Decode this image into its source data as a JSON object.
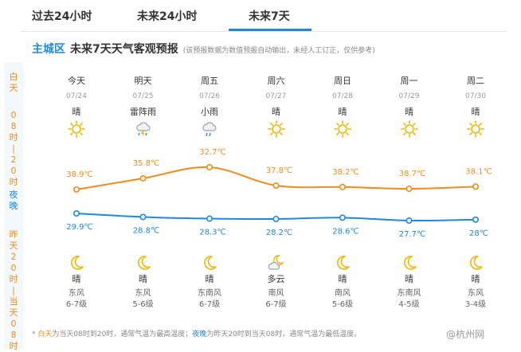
{
  "tabs": [
    {
      "label": "过去24小时",
      "active": false
    },
    {
      "label": "未来24小时",
      "active": false
    },
    {
      "label": "未来7天",
      "active": true
    }
  ],
  "header": {
    "district": "主城区",
    "title": "未来7天天气客观预报",
    "note": "(该预报数据为数值预报自动输出，未经人工订正，仅供参考)"
  },
  "side": {
    "day_label": "白天",
    "day_range": "08时|20时",
    "night_label": "夜晚",
    "night_range": "昨天20时|当天08时"
  },
  "days": [
    {
      "name": "今天",
      "date": "07/24",
      "day_weather": "晴",
      "day_icon": "sun-icon",
      "night_weather": "晴",
      "night_icon": "moon-icon",
      "wind_dir": "东风",
      "wind_level": "6-7级"
    },
    {
      "name": "明天",
      "date": "07/25",
      "day_weather": "雷阵雨",
      "day_icon": "thunderstorm-icon",
      "night_weather": "晴",
      "night_icon": "moon-icon",
      "wind_dir": "东风",
      "wind_level": "5-6级"
    },
    {
      "name": "周五",
      "date": "07/26",
      "day_weather": "小雨",
      "day_icon": "rain-icon",
      "night_weather": "晴",
      "night_icon": "moon-icon",
      "wind_dir": "东南风",
      "wind_level": "6-7级"
    },
    {
      "name": "周六",
      "date": "07/27",
      "day_weather": "晴",
      "day_icon": "sun-icon",
      "night_weather": "多云",
      "night_icon": "cloud-moon-icon",
      "wind_dir": "南风",
      "wind_level": "6-7级"
    },
    {
      "name": "周日",
      "date": "07/28",
      "day_weather": "晴",
      "day_icon": "sun-icon",
      "night_weather": "晴",
      "night_icon": "moon-icon",
      "wind_dir": "南风",
      "wind_level": "5-6级"
    },
    {
      "name": "周一",
      "date": "07/29",
      "day_weather": "晴",
      "day_icon": "sun-icon",
      "night_weather": "晴",
      "night_icon": "moon-icon",
      "wind_dir": "东南风",
      "wind_level": "4-5级"
    },
    {
      "name": "周二",
      "date": "07/30",
      "day_weather": "晴",
      "day_icon": "sun-icon",
      "night_weather": "晴",
      "night_icon": "moon-icon",
      "wind_dir": "东风",
      "wind_level": "3-4级"
    }
  ],
  "chart_data": {
    "type": "line",
    "categories": [
      "07/24",
      "07/25",
      "07/26",
      "07/27",
      "07/28",
      "07/29",
      "07/30"
    ],
    "series": [
      {
        "values": [
          38.9,
          35.8,
          32.7,
          37.8,
          38.2,
          38.7,
          38.1
        ],
        "labels": [
          "38.9℃",
          "35.8℃",
          "32.7℃",
          "37.8℃",
          "38.2℃",
          "38.7℃",
          "38.1℃"
        ],
        "color": "#f28b1c"
      },
      {
        "values": [
          29.9,
          28.8,
          28.3,
          28.2,
          28.6,
          27.7,
          28.0
        ],
        "labels": [
          "29.9℃",
          "28.8℃",
          "28.3℃",
          "28.2℃",
          "28.6℃",
          "27.7℃",
          "28℃"
        ],
        "color": "#1e88e5"
      }
    ]
  },
  "footnote": {
    "day_term": "白天",
    "day_text": "为当天08时到20时，通常气温为最高温度；",
    "night_term": "夜晚",
    "night_text": "为昨天20时到当天08时，通常气温为最低温度。"
  },
  "watermark": "@杭州网",
  "colors": {
    "accent": "#1e88e5",
    "high": "#f28b1c",
    "low": "#1e88e5",
    "sun": "#f5b400"
  }
}
